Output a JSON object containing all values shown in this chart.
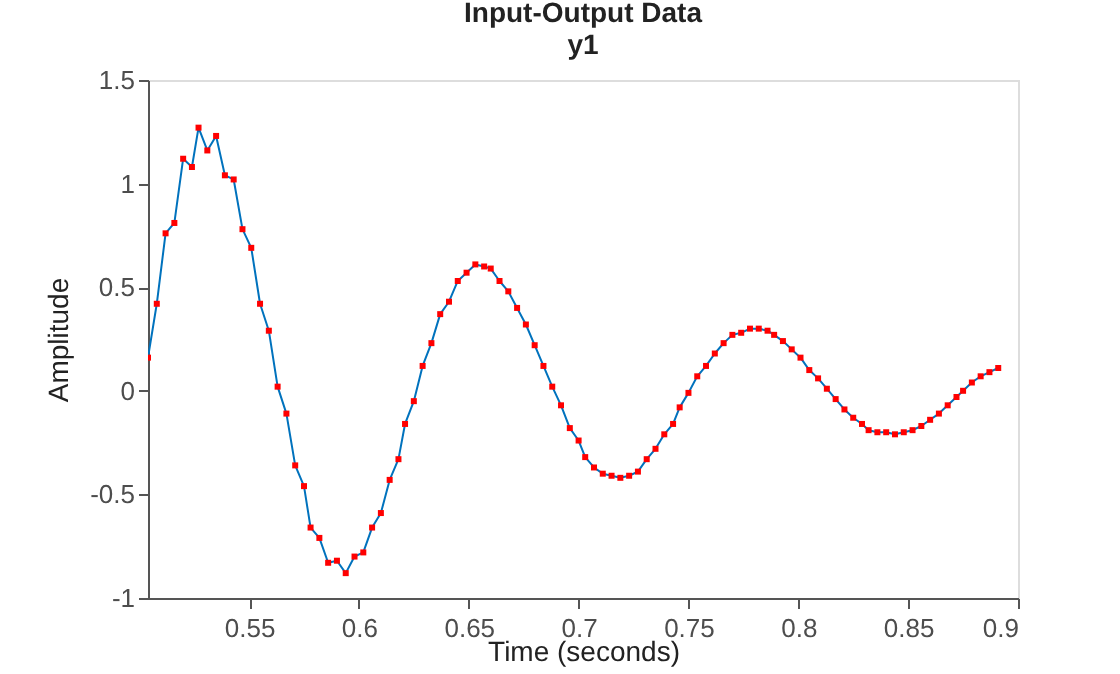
{
  "chart_data": {
    "type": "line",
    "title": "Input-Output Data",
    "subtitle": "y1",
    "xlabel": "Time (seconds)",
    "ylabel": "Amplitude",
    "x": [
      0.504,
      0.508,
      0.512,
      0.516,
      0.52,
      0.524,
      0.527,
      0.531,
      0.535,
      0.539,
      0.543,
      0.547,
      0.551,
      0.555,
      0.559,
      0.563,
      0.567,
      0.571,
      0.575,
      0.578,
      0.582,
      0.586,
      0.59,
      0.594,
      0.598,
      0.602,
      0.606,
      0.61,
      0.614,
      0.618,
      0.621,
      0.625,
      0.629,
      0.633,
      0.637,
      0.641,
      0.645,
      0.649,
      0.653,
      0.657,
      0.66,
      0.664,
      0.668,
      0.672,
      0.676,
      0.68,
      0.684,
      0.688,
      0.692,
      0.696,
      0.7,
      0.703,
      0.707,
      0.711,
      0.715,
      0.719,
      0.723,
      0.727,
      0.731,
      0.735,
      0.739,
      0.743,
      0.746,
      0.75,
      0.754,
      0.758,
      0.762,
      0.766,
      0.77,
      0.774,
      0.778,
      0.782,
      0.786,
      0.789,
      0.793,
      0.797,
      0.801,
      0.805,
      0.809,
      0.813,
      0.817,
      0.821,
      0.825,
      0.829,
      0.832,
      0.836,
      0.84,
      0.844,
      0.848,
      0.852,
      0.856,
      0.86,
      0.864,
      0.868,
      0.872,
      0.875,
      0.879,
      0.883,
      0.887,
      0.891
    ],
    "series": [
      {
        "color": "#0072bd",
        "values": [
          0.16,
          0.42,
          0.76,
          0.81,
          1.12,
          1.08,
          1.27,
          1.16,
          1.23,
          1.04,
          1.02,
          0.78,
          0.69,
          0.42,
          0.29,
          0.02,
          -0.11,
          -0.36,
          -0.46,
          -0.66,
          -0.71,
          -0.83,
          -0.82,
          -0.88,
          -0.8,
          -0.78,
          -0.66,
          -0.59,
          -0.43,
          -0.33,
          -0.16,
          -0.05,
          0.12,
          0.23,
          0.37,
          0.43,
          0.53,
          0.57,
          0.61,
          0.6,
          0.59,
          0.53,
          0.48,
          0.4,
          0.32,
          0.22,
          0.12,
          0.02,
          -0.07,
          -0.18,
          -0.24,
          -0.32,
          -0.37,
          -0.4,
          -0.41,
          -0.42,
          -0.41,
          -0.39,
          -0.33,
          -0.28,
          -0.21,
          -0.16,
          -0.08,
          -0.01,
          0.07,
          0.12,
          0.18,
          0.23,
          0.27,
          0.28,
          0.3,
          0.3,
          0.29,
          0.27,
          0.24,
          0.2,
          0.16,
          0.1,
          0.06,
          0.01,
          -0.04,
          -0.09,
          -0.13,
          -0.16,
          -0.19,
          -0.2,
          -0.2,
          -0.21,
          -0.2,
          -0.19,
          -0.17,
          -0.14,
          -0.11,
          -0.07,
          -0.03,
          0.0,
          0.04,
          0.07,
          0.09,
          0.11
        ]
      }
    ],
    "xlim": [
      0.504,
      0.9
    ],
    "xticks": [
      0.55,
      0.6,
      0.65,
      0.7,
      0.75,
      0.8,
      0.85,
      0.9
    ],
    "ylim": [
      -1,
      1.5
    ],
    "yticks": [
      -1,
      -0.5,
      0,
      0.5,
      1,
      1.5
    ],
    "marker": "square",
    "line_style": "solid",
    "grid": false
  }
}
